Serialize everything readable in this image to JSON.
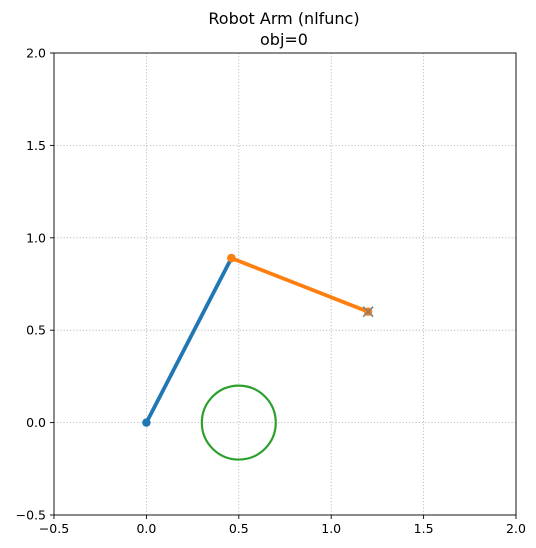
{
  "chart_data": {
    "type": "line",
    "title": "Robot Arm (nlfunc)",
    "subtitle": "obj=0",
    "xlim": [
      -0.5,
      2.0
    ],
    "ylim": [
      -0.5,
      2.0
    ],
    "xticks": [
      "−0.5",
      "0.0",
      "0.5",
      "1.0",
      "1.5",
      "2.0"
    ],
    "yticks": [
      "−0.5",
      "0.0",
      "0.5",
      "1.0",
      "1.5",
      "2.0"
    ],
    "xtick_values": [
      -0.5,
      0.0,
      0.5,
      1.0,
      1.5,
      2.0
    ],
    "ytick_values": [
      -0.5,
      0.0,
      0.5,
      1.0,
      1.5,
      2.0
    ],
    "grid": true,
    "grid_style": "dotted",
    "series": [
      {
        "color": "#1f77b4",
        "x": [
          0.0,
          0.46
        ],
        "y": [
          0.0,
          0.89
        ],
        "markers": "circle"
      },
      {
        "color": "#ff7f0e",
        "x": [
          0.46,
          1.2
        ],
        "y": [
          0.89,
          0.6
        ],
        "markers": "circle"
      }
    ],
    "target": {
      "x": 1.2,
      "y": 0.6,
      "marker": "x",
      "color": "#7f7f7f"
    },
    "obstacle": {
      "type": "circle",
      "center": [
        0.5,
        0.0
      ],
      "radius": 0.2,
      "color": "#2ca02c"
    }
  }
}
